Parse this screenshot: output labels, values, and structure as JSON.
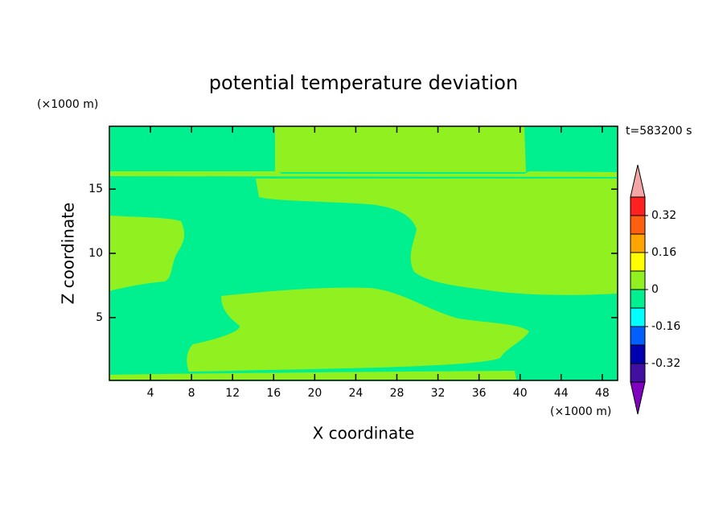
{
  "chart_data": {
    "type": "contour",
    "title": "potential temperature deviation",
    "xlabel": "X coordinate",
    "ylabel": "Z coordinate",
    "xunit": "(×1000 m)",
    "yunit": "(×1000 m)",
    "annotation": "t=583200 s",
    "xlim": [
      0,
      49.5
    ],
    "xticks": [
      4,
      8,
      12,
      16,
      20,
      24,
      28,
      32,
      36,
      40,
      44,
      48
    ],
    "ylim": [
      0.1,
      19.9
    ],
    "yticks": [
      5,
      10,
      15
    ],
    "colorbar": {
      "lim": [
        -0.4,
        0.4
      ],
      "ticks": [
        0.32,
        0.16,
        0,
        -0.16,
        -0.32
      ],
      "colors": [
        "#8000c0",
        "#4010a0",
        "#0000b0",
        "#0060ff",
        "#00ffff",
        "#00f090",
        "#90f020",
        "#ffff00",
        "#ffa500",
        "#ff6010",
        "#ff2020",
        "#f4a6a6"
      ]
    }
  }
}
